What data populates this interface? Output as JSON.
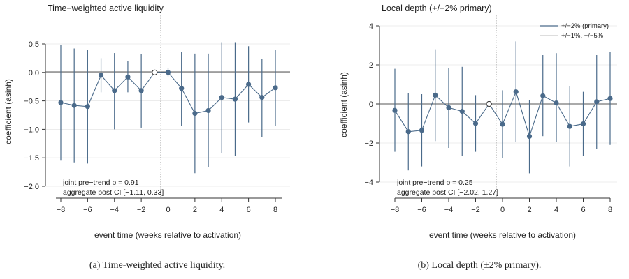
{
  "chart_data": [
    {
      "type": "scatter",
      "title": "Time−weighted active liquidity",
      "xlabel": "event time (weeks relative to activation)",
      "ylabel": "coefficient (asinh)",
      "caption": "(a) Time-weighted active liquidity.",
      "xlim": [
        -8.5,
        8.5
      ],
      "ylim": [
        -2.0,
        0.65
      ],
      "x_ticks": [
        -8,
        -6,
        -4,
        -2,
        0,
        2,
        4,
        6,
        8
      ],
      "x_tick_labels": [
        "−8",
        "−6",
        "−4",
        "−2",
        "0",
        "2",
        "4",
        "6",
        "8"
      ],
      "y_ticks": [
        -2.0,
        -1.5,
        -1.0,
        -0.5,
        0.0,
        0.5
      ],
      "y_tick_labels": [
        "−2.0",
        "−1.5",
        "−1.0",
        "−0.5",
        "0.0",
        "0.5"
      ],
      "reference_event": -1,
      "series": [
        {
          "x": [
            -8,
            -7,
            -6,
            -5,
            -4,
            -3,
            -2,
            -1,
            0,
            1,
            2,
            3,
            4,
            5,
            6,
            7,
            8
          ],
          "values": [
            -0.53,
            -0.58,
            -0.6,
            -0.05,
            -0.32,
            -0.08,
            -0.32,
            0.0,
            0.0,
            -0.28,
            -0.72,
            -0.67,
            -0.44,
            -0.47,
            -0.21,
            -0.44,
            -0.27
          ],
          "ci_low": [
            -1.55,
            -1.58,
            -1.6,
            -0.35,
            -1.0,
            -0.35,
            -0.97,
            null,
            -0.07,
            -0.94,
            -1.77,
            -1.66,
            -1.42,
            -1.47,
            -0.88,
            -1.13,
            -0.94
          ],
          "ci_high": [
            0.48,
            0.42,
            0.4,
            0.25,
            0.34,
            0.2,
            0.32,
            null,
            0.07,
            0.36,
            0.33,
            0.33,
            0.53,
            0.53,
            0.46,
            0.24,
            0.4
          ]
        }
      ],
      "annotations": [
        "joint pre−trend p = 0.91",
        "aggregate post CI [−1.11, 0.33]"
      ]
    },
    {
      "type": "scatter",
      "title": "Local depth (+/−2% primary)",
      "xlabel": "event time (weeks relative to activation)",
      "ylabel": "coefficient (asinh)",
      "caption": "(b) Local depth (±2% primary).",
      "xlim": [
        -8.5,
        8.5
      ],
      "ylim": [
        -4.4,
        4.4
      ],
      "x_ticks": [
        -8,
        -6,
        -4,
        -2,
        0,
        2,
        4,
        6,
        8
      ],
      "x_tick_labels": [
        "−8",
        "−6",
        "−4",
        "−2",
        "0",
        "2",
        "4",
        "6",
        "8"
      ],
      "y_ticks": [
        -4,
        -2,
        0,
        2,
        4
      ],
      "y_tick_labels": [
        "−4",
        "−2",
        "0",
        "2",
        "4"
      ],
      "reference_event": -1,
      "legend": {
        "placement": "top-right",
        "entries": [
          "+/−2% (primary)",
          "+/−1%, +/−5%"
        ]
      },
      "series": [
        {
          "name": "+/−2% (primary)",
          "x": [
            -8,
            -7,
            -6,
            -5,
            -4,
            -3,
            -2,
            -1,
            0,
            1,
            2,
            3,
            4,
            5,
            6,
            7,
            8
          ],
          "values": [
            -0.33,
            -1.42,
            -1.35,
            0.45,
            -0.19,
            -0.38,
            -1.0,
            0.0,
            -1.04,
            0.62,
            -1.66,
            0.42,
            0.05,
            -1.15,
            -1.02,
            0.11,
            0.28
          ],
          "ci_low": [
            -2.45,
            -3.4,
            -3.2,
            -1.9,
            -2.25,
            -2.65,
            -2.45,
            null,
            -2.78,
            -1.95,
            -3.55,
            -1.65,
            -1.95,
            -3.2,
            -2.65,
            -2.3,
            -2.1
          ],
          "ci_high": [
            1.8,
            0.55,
            0.5,
            2.8,
            1.85,
            1.9,
            0.45,
            null,
            0.7,
            3.2,
            0.2,
            2.5,
            2.6,
            0.9,
            0.62,
            2.5,
            2.68
          ]
        }
      ],
      "annotations": [
        "joint pre−trend p = 0.25",
        "aggregate post CI [−2.02, 1.27]"
      ]
    }
  ]
}
